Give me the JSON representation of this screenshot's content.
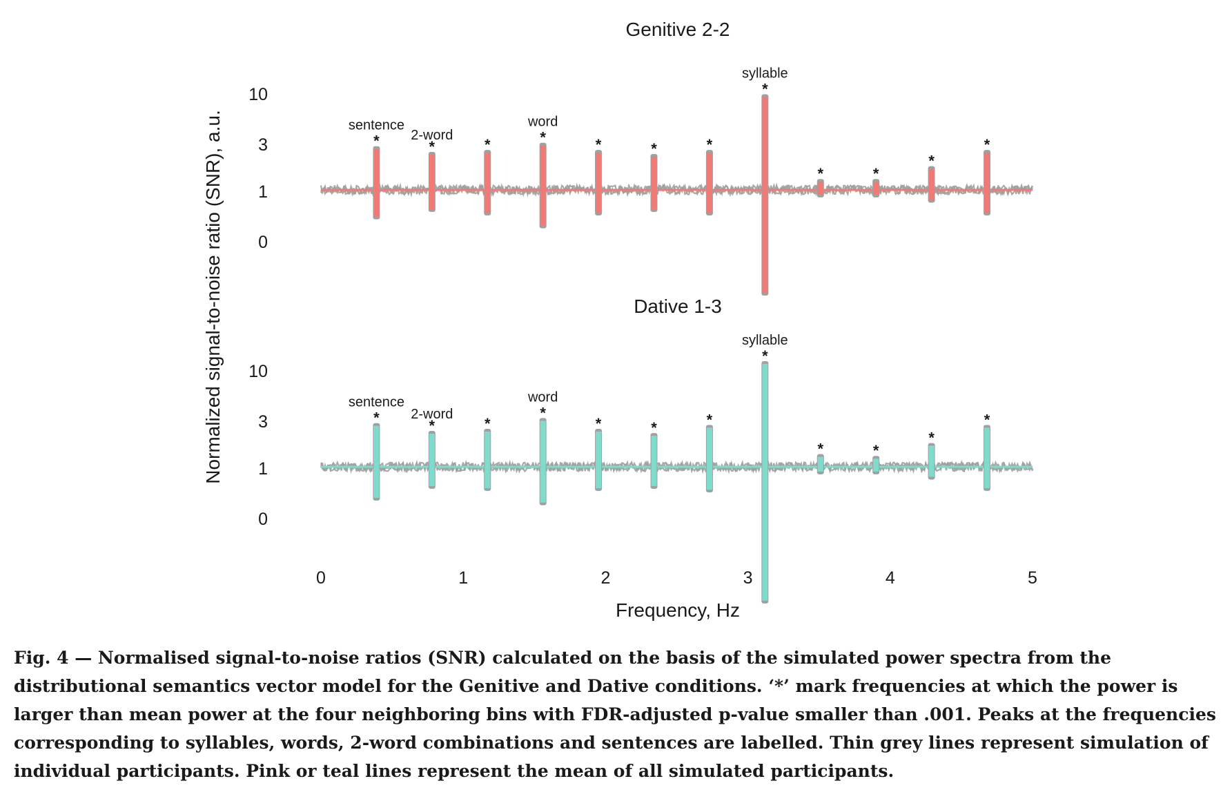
{
  "chart_data": {
    "type": "line",
    "xlabel": "Frequency, Hz",
    "ylabel": "Normalized signal-to-noise ratio (SNR), a.u.",
    "xlim": [
      0,
      5
    ],
    "x_ticks": [
      "0",
      "1",
      "2",
      "3",
      "4",
      "5"
    ],
    "y_ticks": [
      "10",
      "3",
      "1",
      "0"
    ],
    "y_scale": "log",
    "grid": false,
    "noise_color": "#a0a0a0",
    "panels": [
      {
        "title": "Genitive 2-2",
        "color": "#f07b76",
        "peaks": [
          {
            "x": 0.39,
            "y": 2.5,
            "low": 0.55,
            "label": "sentence",
            "star": "*"
          },
          {
            "x": 0.78,
            "y": 2.2,
            "low": 0.65,
            "label": "2-word",
            "star": "*"
          },
          {
            "x": 1.17,
            "y": 2.3,
            "low": 0.6,
            "label": "",
            "star": "*"
          },
          {
            "x": 1.56,
            "y": 2.7,
            "low": 0.45,
            "label": "word",
            "star": "*"
          },
          {
            "x": 1.95,
            "y": 2.3,
            "low": 0.6,
            "label": "",
            "star": "*"
          },
          {
            "x": 2.34,
            "y": 2.1,
            "low": 0.65,
            "label": "",
            "star": "*"
          },
          {
            "x": 2.73,
            "y": 2.3,
            "low": 0.6,
            "label": "",
            "star": "*"
          },
          {
            "x": 3.12,
            "y": 8.0,
            "low": 0.1,
            "label": "syllable",
            "star": "*"
          },
          {
            "x": 3.51,
            "y": 1.2,
            "low": 0.9,
            "label": "",
            "star": "*"
          },
          {
            "x": 3.9,
            "y": 1.2,
            "low": 0.9,
            "label": "",
            "star": "*"
          },
          {
            "x": 4.29,
            "y": 1.6,
            "low": 0.8,
            "label": "",
            "star": "*"
          },
          {
            "x": 4.68,
            "y": 2.3,
            "low": 0.6,
            "label": "",
            "star": "*"
          }
        ]
      },
      {
        "title": "Dative 1-3",
        "color": "#7fdccd",
        "peaks": [
          {
            "x": 0.39,
            "y": 2.5,
            "low": 0.5,
            "label": "sentence",
            "star": "*"
          },
          {
            "x": 0.78,
            "y": 2.1,
            "low": 0.65,
            "label": "2-word",
            "star": "*"
          },
          {
            "x": 1.17,
            "y": 2.2,
            "low": 0.62,
            "label": "",
            "star": "*"
          },
          {
            "x": 1.56,
            "y": 2.8,
            "low": 0.45,
            "label": "word",
            "star": "*"
          },
          {
            "x": 1.95,
            "y": 2.2,
            "low": 0.62,
            "label": "",
            "star": "*"
          },
          {
            "x": 2.34,
            "y": 2.0,
            "low": 0.65,
            "label": "",
            "star": "*"
          },
          {
            "x": 2.73,
            "y": 2.4,
            "low": 0.6,
            "label": "",
            "star": "*"
          },
          {
            "x": 3.12,
            "y": 10.0,
            "low": 0.05,
            "label": "syllable",
            "star": "*"
          },
          {
            "x": 3.51,
            "y": 1.25,
            "low": 0.9,
            "label": "",
            "star": "*"
          },
          {
            "x": 3.9,
            "y": 1.2,
            "low": 0.9,
            "label": "",
            "star": "*"
          },
          {
            "x": 4.29,
            "y": 1.6,
            "low": 0.8,
            "label": "",
            "star": "*"
          },
          {
            "x": 4.68,
            "y": 2.4,
            "low": 0.62,
            "label": "",
            "star": "*"
          }
        ]
      }
    ]
  },
  "caption": "Fig. 4 — Normalised signal-to-noise ratios (SNR) calculated on the basis of the simulated power spectra from the distributional semantics vector model for the Genitive and Dative conditions. ‘*’ mark frequencies at which the power is larger than mean power at the four neighboring bins with FDR-adjusted p-value smaller than .001. Peaks at the frequencies corresponding to syllables, words, 2-word combinations and sentences are labelled. Thin grey lines represent simulation of individual participants. Pink or teal lines represent the mean of all simulated participants."
}
